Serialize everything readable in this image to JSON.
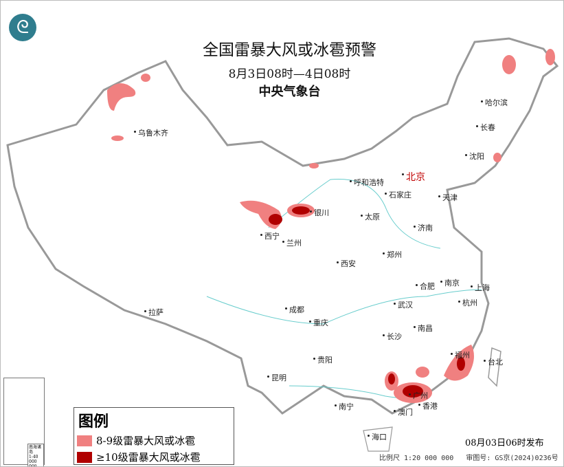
{
  "header": {
    "title": "全国雷暴大风或冰雹预警",
    "period": "8月3日08时—4日08时",
    "issuer": "中央气象台"
  },
  "legend": {
    "title": "图例",
    "items": [
      {
        "label": "8-9级雷暴大风或冰雹",
        "color": "#f08080"
      },
      {
        "label": "≥10级雷暴大风或冰雹",
        "color": "#b00000"
      }
    ]
  },
  "footer": {
    "issued": "08月03日06时发布",
    "scale": "比例尺 1:20 000 000",
    "approval": "审图号: GS京(2024)0236号"
  },
  "inset": {
    "label": "南海诸岛",
    "scale": "1:40 000 000"
  },
  "cities": [
    {
      "name": "乌鲁木齐"
    },
    {
      "name": "哈尔滨"
    },
    {
      "name": "长春"
    },
    {
      "name": "沈阳"
    },
    {
      "name": "呼和浩特"
    },
    {
      "name": "北京",
      "capital": true
    },
    {
      "name": "天津"
    },
    {
      "name": "石家庄"
    },
    {
      "name": "太原"
    },
    {
      "name": "济南"
    },
    {
      "name": "银川"
    },
    {
      "name": "西宁"
    },
    {
      "name": "兰州"
    },
    {
      "name": "郑州"
    },
    {
      "name": "西安"
    },
    {
      "name": "合肥"
    },
    {
      "name": "南京"
    },
    {
      "name": "上海"
    },
    {
      "name": "杭州"
    },
    {
      "name": "武汉"
    },
    {
      "name": "成都"
    },
    {
      "name": "重庆"
    },
    {
      "name": "拉萨"
    },
    {
      "name": "南昌"
    },
    {
      "name": "长沙"
    },
    {
      "name": "福州"
    },
    {
      "name": "台北"
    },
    {
      "name": "贵阳"
    },
    {
      "name": "昆明"
    },
    {
      "name": "南宁"
    },
    {
      "name": "广州"
    },
    {
      "name": "澳门"
    },
    {
      "name": "香港"
    },
    {
      "name": "海口"
    }
  ],
  "colors": {
    "level_8_9": "#f08080",
    "level_10_plus": "#b00000",
    "border": "#999999",
    "capital": "#c00000",
    "logo": "#2f7d8e"
  }
}
